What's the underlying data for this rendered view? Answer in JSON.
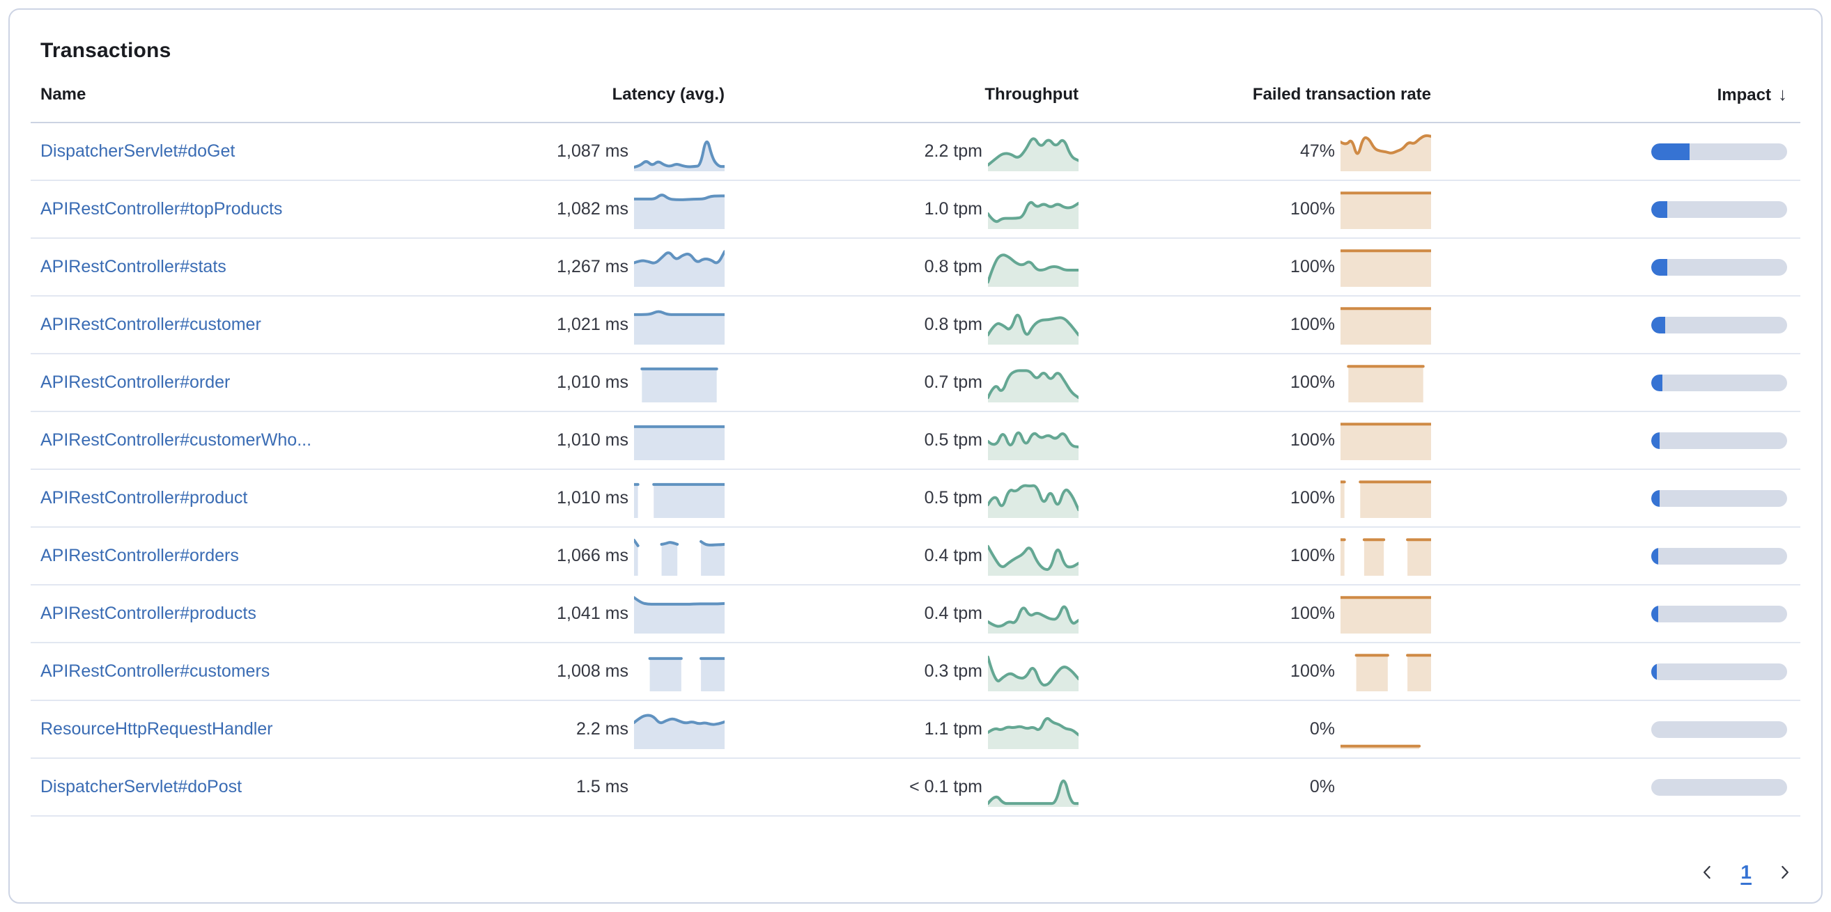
{
  "panel": {
    "title": "Transactions"
  },
  "palette": {
    "link": "#3A6CB4",
    "latency_line": "#6092C0",
    "latency_fill": "#DAE3F0",
    "throughput_line": "#64A793",
    "throughput_fill": "#DEEBE4",
    "failed_line": "#CF8A45",
    "failed_fill": "#F2E2D0",
    "impact_fill": "#3673D3",
    "impact_track": "#D5DBE7"
  },
  "table": {
    "columns": [
      {
        "label": "Name"
      },
      {
        "label": "Latency (avg.)"
      },
      {
        "label": "Throughput"
      },
      {
        "label": "Failed transaction rate"
      },
      {
        "label": "Impact",
        "sort": "descending",
        "sort_icon": "↓"
      }
    ],
    "rows": [
      {
        "name": "DispatcherServlet#doGet",
        "latency": {
          "value": "1,087 ms",
          "spark": [
            0.06,
            0.1,
            0.26,
            0.1,
            0.24,
            0.12,
            0.08,
            0.16,
            0.1,
            0.07,
            0.08,
            0.1,
            0.97,
            0.3,
            0.08,
            0.08
          ]
        },
        "throughput": {
          "value": "2.2 tpm",
          "spark": [
            0.12,
            0.3,
            0.46,
            0.44,
            0.3,
            0.55,
            0.97,
            0.6,
            0.9,
            0.62,
            0.92,
            0.35,
            0.25
          ]
        },
        "failed_rate": {
          "value": "47%",
          "spark": [
            0.78,
            0.68,
            0.88,
            0.3,
            0.92,
            0.88,
            0.58,
            0.52,
            0.5,
            0.45,
            0.52,
            0.58,
            0.78,
            0.72,
            0.88,
            0.97,
            0.94
          ]
        },
        "impact_pct": 28
      },
      {
        "name": "APIRestController#topProducts",
        "latency": {
          "value": "1,082 ms",
          "spark": [
            0.8,
            0.8,
            0.8,
            0.8,
            0.95,
            0.8,
            0.78,
            0.78,
            0.79,
            0.8,
            0.8,
            0.88,
            0.89,
            0.89
          ]
        },
        "throughput": {
          "value": "1.0 tpm",
          "spark": [
            0.38,
            0.1,
            0.25,
            0.25,
            0.25,
            0.28,
            0.78,
            0.55,
            0.68,
            0.55,
            0.68,
            0.55,
            0.55,
            0.68
          ]
        },
        "failed_rate": {
          "value": "100%",
          "spark": [
            0.97,
            0.97,
            0.97,
            0.97,
            0.97,
            0.97,
            0.97,
            0.97,
            0.97,
            0.97,
            0.97,
            0.97,
            0.97,
            0.97,
            0.97,
            0.97,
            0.97,
            0.97,
            0.97,
            0.97,
            0.97,
            0.97,
            0.97,
            0.97
          ]
        },
        "impact_pct": 12
      },
      {
        "name": "APIRestController#stats",
        "latency": {
          "value": "1,267 ms",
          "spark": [
            0.63,
            0.7,
            0.67,
            0.6,
            0.78,
            0.97,
            0.7,
            0.85,
            0.9,
            0.62,
            0.75,
            0.72,
            0.58,
            0.95
          ]
        },
        "throughput": {
          "value": "0.8 tpm",
          "spark": [
            0.08,
            0.68,
            0.88,
            0.8,
            0.62,
            0.55,
            0.7,
            0.42,
            0.42,
            0.52,
            0.52,
            0.42,
            0.42,
            0.42
          ]
        },
        "failed_rate": {
          "value": "100%",
          "spark": [
            0.97,
            0.97,
            0.97,
            0.97,
            0.97,
            0.97,
            0.97,
            0.97,
            0.97,
            0.97,
            0.97,
            0.97,
            0.97,
            0.97,
            0.97,
            0.97,
            0.97,
            0.97,
            0.97,
            0.97,
            0.97,
            0.97,
            0.97,
            0.97
          ]
        },
        "impact_pct": 12
      },
      {
        "name": "APIRestController#customer",
        "latency": {
          "value": "1,021 ms",
          "spark": [
            0.8,
            0.8,
            0.81,
            0.91,
            0.8,
            0.8,
            0.8,
            0.8,
            0.8,
            0.8,
            0.8,
            0.8
          ]
        },
        "throughput": {
          "value": "0.8 tpm",
          "spark": [
            0.22,
            0.58,
            0.5,
            0.32,
            0.97,
            0.1,
            0.5,
            0.65,
            0.65,
            0.7,
            0.72,
            0.5,
            0.22
          ]
        },
        "failed_rate": {
          "value": "100%",
          "spark": [
            0.97,
            0.97,
            0.97,
            0.97,
            0.97,
            0.97,
            0.97,
            0.97,
            0.97,
            0.97,
            0.97,
            0.97,
            0.97,
            0.97,
            0.97,
            0.97,
            0.97,
            0.97,
            0.97,
            0.97,
            0.97,
            0.97,
            0.97,
            0.97
          ]
        },
        "impact_pct": 10
      },
      {
        "name": "APIRestController#order",
        "latency": {
          "value": "1,010 ms",
          "spark": [
            null,
            null,
            0.9,
            0.9,
            0.9,
            0.9,
            0.9,
            0.9,
            0.9,
            0.9,
            0.9,
            0.9,
            0.9,
            0.9,
            0.9,
            0.9,
            0.9,
            0.9,
            0.9,
            0.9,
            0.9,
            0.9,
            null,
            null
          ]
        },
        "throughput": {
          "value": "0.7 tpm",
          "spark": [
            0.08,
            0.52,
            0.18,
            0.72,
            0.85,
            0.85,
            0.85,
            0.58,
            0.85,
            0.55,
            0.85,
            0.55,
            0.22,
            0.08
          ]
        },
        "failed_rate": {
          "value": "100%",
          "spark": [
            null,
            null,
            0.97,
            0.97,
            0.97,
            0.97,
            0.97,
            0.97,
            0.97,
            0.97,
            0.97,
            0.97,
            0.97,
            0.97,
            0.97,
            0.97,
            0.97,
            0.97,
            0.97,
            0.97,
            0.97,
            0.97,
            null,
            null
          ]
        },
        "impact_pct": 8
      },
      {
        "name": "APIRestController#customerWho...",
        "latency": {
          "value": "1,010 ms",
          "spark": [
            0.9,
            0.9,
            0.9,
            0.9,
            0.9,
            0.9,
            0.9,
            0.9,
            0.9,
            0.9,
            0.9,
            0.9,
            0.9,
            0.9,
            0.9,
            0.9,
            0.9,
            0.9,
            0.9,
            0.9,
            0.9,
            0.9,
            0.9,
            0.9
          ]
        },
        "throughput": {
          "value": "0.5 tpm",
          "spark": [
            0.48,
            0.28,
            0.82,
            0.22,
            0.88,
            0.3,
            0.78,
            0.55,
            0.68,
            0.52,
            0.78,
            0.35,
            0.32
          ]
        },
        "failed_rate": {
          "value": "100%",
          "spark": [
            0.97,
            0.97,
            0.97,
            0.97,
            0.97,
            0.97,
            0.97,
            0.97,
            0.97,
            0.97,
            0.97,
            0.97,
            0.97,
            0.97,
            0.97,
            0.97,
            0.97,
            0.97,
            0.97,
            0.97,
            0.97,
            0.97,
            0.97,
            0.97
          ]
        },
        "impact_pct": 6
      },
      {
        "name": "APIRestController#product",
        "latency": {
          "value": "1,010 ms",
          "spark": [
            0.9,
            0.9,
            null,
            null,
            null,
            0.9,
            0.9,
            0.9,
            0.9,
            0.9,
            0.9,
            0.9,
            0.9,
            0.9,
            0.9,
            0.9,
            0.9,
            0.9,
            0.9,
            0.9,
            0.9,
            0.9,
            0.9,
            0.9
          ]
        },
        "throughput": {
          "value": "0.5 tpm",
          "spark": [
            0.32,
            0.68,
            0.15,
            0.78,
            0.68,
            0.88,
            0.85,
            0.88,
            0.28,
            0.78,
            0.18,
            0.82,
            0.62,
            0.18
          ]
        },
        "failed_rate": {
          "value": "100%",
          "spark": [
            0.97,
            0.97,
            null,
            null,
            null,
            0.97,
            0.97,
            0.97,
            0.97,
            0.97,
            0.97,
            0.97,
            0.97,
            0.97,
            0.97,
            0.97,
            0.97,
            0.97,
            0.97,
            0.97,
            0.97,
            0.97,
            0.97,
            0.97
          ]
        },
        "impact_pct": 6
      },
      {
        "name": "APIRestController#orders",
        "latency": {
          "value": "1,066 ms",
          "spark": [
            0.96,
            0.8,
            null,
            null,
            null,
            null,
            null,
            0.84,
            0.86,
            0.9,
            0.88,
            0.84,
            null,
            null,
            null,
            null,
            null,
            0.92,
            0.84,
            0.82,
            0.82,
            0.83,
            0.83,
            0.84
          ]
        },
        "throughput": {
          "value": "0.4 tpm",
          "spark": [
            0.78,
            0.42,
            0.15,
            0.32,
            0.45,
            0.55,
            0.82,
            0.35,
            0.12,
            0.12,
            0.85,
            0.22,
            0.18,
            0.3
          ]
        },
        "failed_rate": {
          "value": "100%",
          "spark": [
            0.97,
            0.97,
            null,
            null,
            null,
            null,
            0.97,
            0.97,
            0.97,
            0.97,
            0.97,
            0.97,
            null,
            null,
            null,
            null,
            null,
            0.97,
            0.97,
            0.97,
            0.97,
            0.97,
            0.97,
            0.97
          ]
        },
        "impact_pct": 5
      },
      {
        "name": "APIRestController#products",
        "latency": {
          "value": "1,041 ms",
          "spark": [
            0.97,
            0.82,
            0.78,
            0.78,
            0.78,
            0.78,
            0.78,
            0.78,
            0.78,
            0.79,
            0.79,
            0.79,
            0.79,
            0.8
          ]
        },
        "throughput": {
          "value": "0.4 tpm",
          "spark": [
            0.28,
            0.15,
            0.15,
            0.3,
            0.22,
            0.78,
            0.42,
            0.55,
            0.45,
            0.35,
            0.35,
            0.85,
            0.18,
            0.32
          ]
        },
        "failed_rate": {
          "value": "100%",
          "spark": [
            0.97,
            0.97,
            0.97,
            0.97,
            0.97,
            0.97,
            0.97,
            0.97,
            0.97,
            0.97,
            0.97,
            0.97,
            0.97,
            0.97,
            0.97,
            0.97,
            0.97,
            0.97,
            0.97,
            0.97,
            0.97,
            0.97,
            0.97,
            0.97
          ]
        },
        "impact_pct": 5
      },
      {
        "name": "APIRestController#customers",
        "latency": {
          "value": "1,008 ms",
          "spark": [
            null,
            null,
            null,
            null,
            0.88,
            0.88,
            0.88,
            0.88,
            0.88,
            0.88,
            0.88,
            0.88,
            0.88,
            null,
            null,
            null,
            null,
            0.88,
            0.88,
            0.88,
            0.88,
            0.88,
            0.88,
            0.88
          ]
        },
        "throughput": {
          "value": "0.3 tpm",
          "spark": [
            0.92,
            0.15,
            0.35,
            0.48,
            0.32,
            0.32,
            0.72,
            0.12,
            0.12,
            0.45,
            0.68,
            0.55,
            0.3
          ]
        },
        "failed_rate": {
          "value": "100%",
          "spark": [
            null,
            null,
            null,
            null,
            0.97,
            0.97,
            0.97,
            0.97,
            0.97,
            0.97,
            0.97,
            0.97,
            0.97,
            null,
            null,
            null,
            null,
            0.97,
            0.97,
            0.97,
            0.97,
            0.97,
            0.97,
            0.97
          ]
        },
        "impact_pct": 4
      },
      {
        "name": "ResourceHttpRequestHandler",
        "latency": {
          "value": "2.2 ms",
          "spark": [
            0.7,
            0.85,
            0.92,
            0.88,
            0.66,
            0.76,
            0.82,
            0.74,
            0.68,
            0.73,
            0.66,
            0.7,
            0.64,
            0.66,
            0.72
          ]
        },
        "throughput": {
          "value": "1.1 tpm",
          "spark": [
            0.42,
            0.55,
            0.48,
            0.58,
            0.55,
            0.6,
            0.52,
            0.58,
            0.45,
            0.88,
            0.7,
            0.65,
            0.52,
            0.5,
            0.35
          ]
        },
        "failed_rate": {
          "value": "0%",
          "spark": [
            0.03,
            0.03,
            0.03,
            0.03,
            0.03,
            0.03,
            0.03,
            0.03,
            0.03,
            0.03,
            0.03,
            0.03,
            0.03,
            0.03,
            0.03,
            0.03,
            0.03,
            0.03,
            0.03,
            0.03,
            0.03,
            null,
            null,
            null
          ]
        },
        "impact_pct": 0
      },
      {
        "name": "DispatcherServlet#doPost",
        "latency": {
          "value": "1.5 ms",
          "spark": null
        },
        "throughput": {
          "value": "< 0.1 tpm",
          "spark": [
            0.04,
            0.32,
            0.04,
            0.04,
            0.04,
            0.04,
            0.04,
            0.04,
            0.04,
            0.04,
            0.9,
            0.04,
            0.04
          ]
        },
        "failed_rate": {
          "value": "0%",
          "spark": null
        },
        "impact_pct": 0
      }
    ]
  },
  "pagination": {
    "page": "1",
    "prev_icon": "chevron-left",
    "next_icon": "chevron-right"
  }
}
